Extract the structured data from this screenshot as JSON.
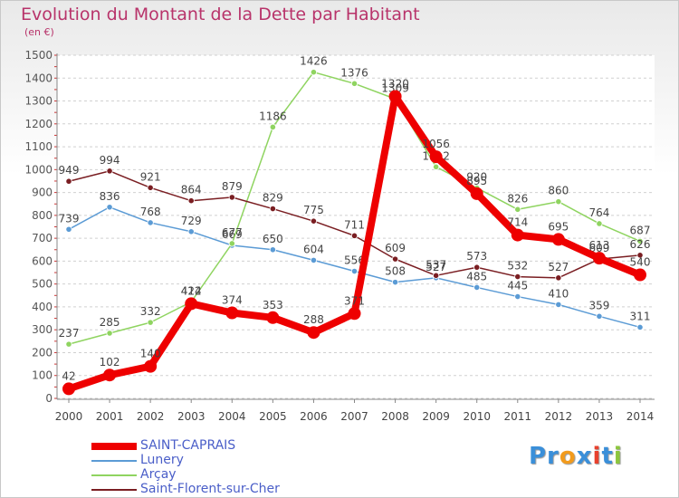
{
  "title": "Evolution du Montant de la Dette par Habitant",
  "subtitle": "(en €)",
  "logo": {
    "parts": [
      "Pr",
      "o",
      "x",
      "i",
      "t",
      "i"
    ],
    "colors": [
      "#3a8fd9",
      "#f29b1d",
      "#3a8fd9",
      "#e8412e",
      "#3a8fd9",
      "#8cc63e"
    ]
  },
  "chart_data": {
    "type": "line",
    "title": "Evolution du Montant de la Dette par Habitant",
    "ylabel": "(en €)",
    "xlabel": "",
    "x": [
      "2000",
      "2001",
      "2002",
      "2003",
      "2004",
      "2005",
      "2006",
      "2007",
      "2008",
      "2009",
      "2010",
      "2011",
      "2012",
      "2013",
      "2014"
    ],
    "ylim": [
      0,
      1500
    ],
    "yticks": [
      0,
      100,
      200,
      300,
      400,
      500,
      600,
      700,
      800,
      900,
      1000,
      1100,
      1200,
      1300,
      1400,
      1500
    ],
    "grid": "horizontal dashed",
    "legend_position": "bottom-left",
    "series": [
      {
        "name": "Lunery",
        "color": "#5b9bd5",
        "values": [
          739,
          836,
          768,
          729,
          669,
          650,
          604,
          556,
          508,
          527,
          485,
          445,
          410,
          359,
          311
        ]
      },
      {
        "name": "Arçay",
        "color": "#8fd460",
        "values": [
          237,
          285,
          332,
          422,
          677,
          1186,
          1426,
          1376,
          1309,
          1012,
          920,
          826,
          860,
          764,
          687
        ]
      },
      {
        "name": "Saint-Florent-sur-Cher",
        "color": "#7a1e22",
        "values": [
          949,
          994,
          921,
          864,
          879,
          829,
          775,
          711,
          609,
          537,
          573,
          532,
          527,
          609,
          626
        ]
      },
      {
        "name": "SAINT-CAPRAIS",
        "color": "#ee0000",
        "values": [
          42,
          102,
          140,
          414,
          374,
          353,
          288,
          371,
          1320,
          1056,
          895,
          714,
          695,
          613,
          540
        ]
      }
    ]
  }
}
